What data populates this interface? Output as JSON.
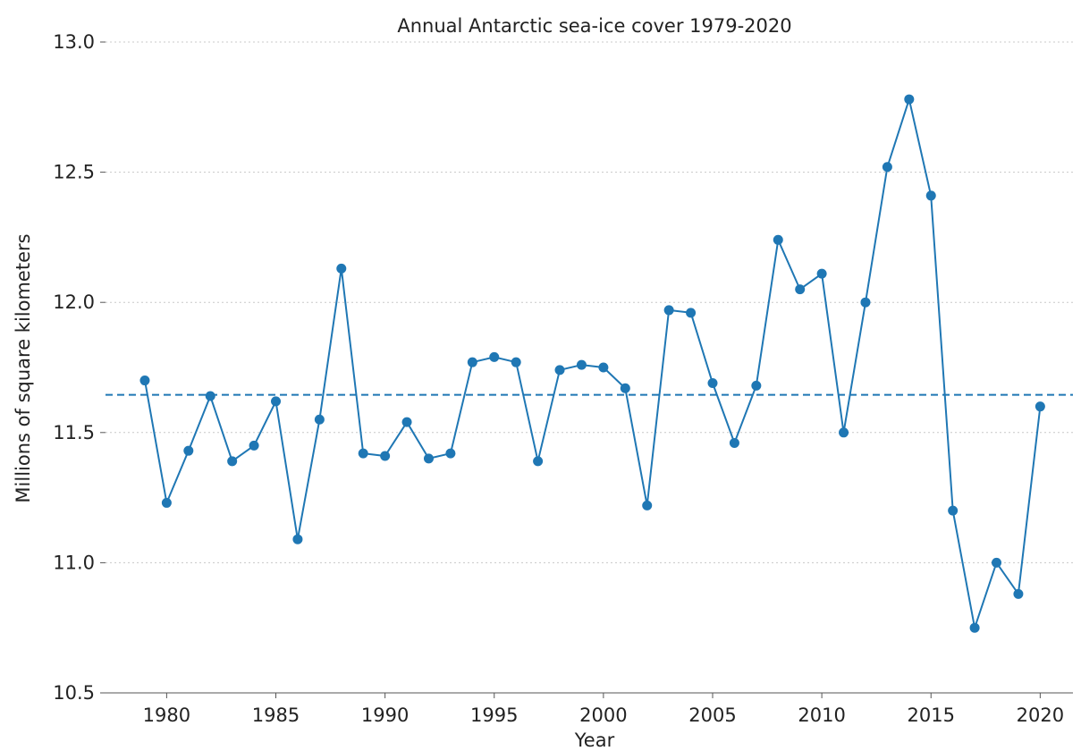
{
  "chart_data": {
    "type": "line",
    "title": "Annual Antarctic sea-ice cover 1979-2020",
    "xlabel": "Year",
    "ylabel": "Millions of square kilometers",
    "xlim": [
      1977.2,
      2021.5
    ],
    "ylim": [
      10.5,
      13.0
    ],
    "xticks": [
      1980,
      1985,
      1990,
      1995,
      2000,
      2005,
      2010,
      2015,
      2020
    ],
    "yticks": [
      10.5,
      11.0,
      11.5,
      12.0,
      12.5,
      13.0
    ],
    "ytick_labels": [
      "10.5",
      "11.0",
      "11.5",
      "12.0",
      "12.5",
      "13.0"
    ],
    "grid": "horizontal dotted",
    "color": "#1f77b4",
    "mean_line": 11.645,
    "x": [
      1979,
      1980,
      1981,
      1982,
      1983,
      1984,
      1985,
      1986,
      1987,
      1988,
      1989,
      1990,
      1991,
      1992,
      1993,
      1994,
      1995,
      1996,
      1997,
      1998,
      1999,
      2000,
      2001,
      2002,
      2003,
      2004,
      2005,
      2006,
      2007,
      2008,
      2009,
      2010,
      2011,
      2012,
      2013,
      2014,
      2015,
      2016,
      2017,
      2018,
      2019,
      2020
    ],
    "values": [
      11.7,
      11.23,
      11.43,
      11.64,
      11.39,
      11.45,
      11.62,
      11.09,
      11.55,
      12.13,
      11.42,
      11.41,
      11.54,
      11.4,
      11.42,
      11.77,
      11.79,
      11.77,
      11.39,
      11.74,
      11.76,
      11.75,
      11.67,
      11.22,
      11.97,
      11.96,
      11.69,
      11.46,
      11.68,
      12.24,
      12.05,
      12.11,
      11.5,
      12.0,
      12.52,
      12.78,
      12.41,
      11.2,
      10.75,
      11.0,
      10.88,
      11.6
    ]
  }
}
